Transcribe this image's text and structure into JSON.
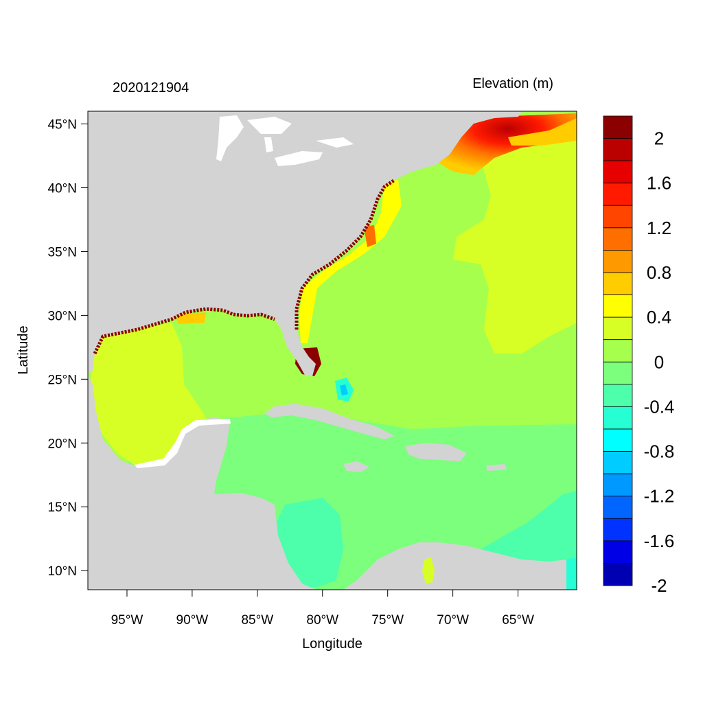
{
  "map": {
    "timestamp": "2020121904",
    "variable_title": "Elevation (m)",
    "x_axis_label": "Longitude",
    "y_axis_label": "Latitude",
    "lon_ticks": [
      "95°W",
      "90°W",
      "85°W",
      "80°W",
      "75°W",
      "70°W",
      "65°W"
    ],
    "lon_values": [
      -95,
      -90,
      -85,
      -80,
      -75,
      -70,
      -65
    ],
    "lat_ticks": [
      "45°N",
      "40°N",
      "35°N",
      "30°N",
      "25°N",
      "20°N",
      "15°N",
      "10°N"
    ],
    "lat_values": [
      45,
      40,
      35,
      30,
      25,
      20,
      15,
      10
    ],
    "lon_range": [
      -98,
      -60.5
    ],
    "lat_range": [
      8.5,
      46
    ],
    "land_color": "#d3d3d3",
    "colorbar": {
      "labels": [
        "2",
        "1.6",
        "1.2",
        "0.8",
        "0.4",
        "0",
        "-0.4",
        "-0.8",
        "-1.2",
        "-1.6",
        "-2"
      ],
      "colors_top_to_bottom": [
        "#8b0000",
        "#bb0000",
        "#e60000",
        "#ff1a00",
        "#ff4500",
        "#ff6f00",
        "#ff9900",
        "#ffcc00",
        "#ffff00",
        "#d7ff26",
        "#a6ff4d",
        "#7cff7c",
        "#4dffaa",
        "#26ffd4",
        "#00ffff",
        "#00ccff",
        "#0099ff",
        "#0066ff",
        "#0033ff",
        "#0000e6",
        "#0000b3"
      ]
    }
  }
}
